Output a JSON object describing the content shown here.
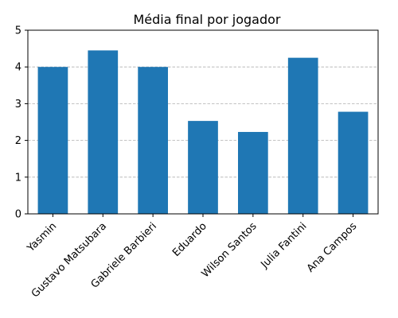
{
  "chart_data": {
    "type": "bar",
    "title": "Média final por jogador",
    "xlabel": "",
    "ylabel": "",
    "categories": [
      "Yasmin",
      "Gustavo Matsubara",
      "Gabriele Barbieri",
      "Eduardo",
      "Wilson Santos",
      "Julia Fantini",
      "Ana Campos"
    ],
    "values": [
      4.0,
      4.45,
      4.0,
      2.53,
      2.23,
      4.25,
      2.78
    ],
    "ylim": [
      0,
      5
    ],
    "yticks": [
      "0",
      "1",
      "2",
      "3",
      "4",
      "5"
    ],
    "grid": "y-dashed",
    "bar_color": "#1f77b4"
  }
}
